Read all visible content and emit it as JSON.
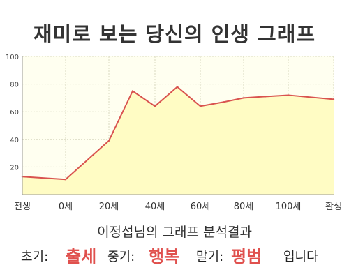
{
  "title": "재미로 보는 당신의 인생 그래프",
  "chart_data": {
    "type": "area",
    "title": "재미로 보는 당신의 인생 그래프",
    "x_tick_labels": [
      "전생",
      "0세",
      "20세",
      "40세",
      "60세",
      "80세",
      "100세",
      "환생"
    ],
    "x": [
      "전생",
      "0세",
      "20세",
      "30세",
      "40세",
      "50세",
      "60세",
      "70세",
      "80세",
      "90세",
      "100세",
      "환생"
    ],
    "values": [
      13,
      11,
      39,
      75,
      64,
      78,
      64,
      67,
      70,
      71,
      72,
      69
    ],
    "ylim": [
      0,
      100
    ],
    "y_ticks": [
      20,
      40,
      60,
      80,
      100
    ],
    "grid": true,
    "line_color": "#d9534f",
    "fill_color": "#fffcc4",
    "plot_bg": "#fffff0"
  },
  "result": {
    "subtitle": "이정섭님의 그래프 분석결과",
    "early_label": "초기:",
    "early_value": "출세",
    "middle_label": "중기:",
    "middle_value": "행복",
    "late_label": "말기:",
    "late_value": "평범",
    "suffix": "입니다"
  },
  "colors": {
    "highlight": "#e0514e",
    "text": "#333333"
  }
}
